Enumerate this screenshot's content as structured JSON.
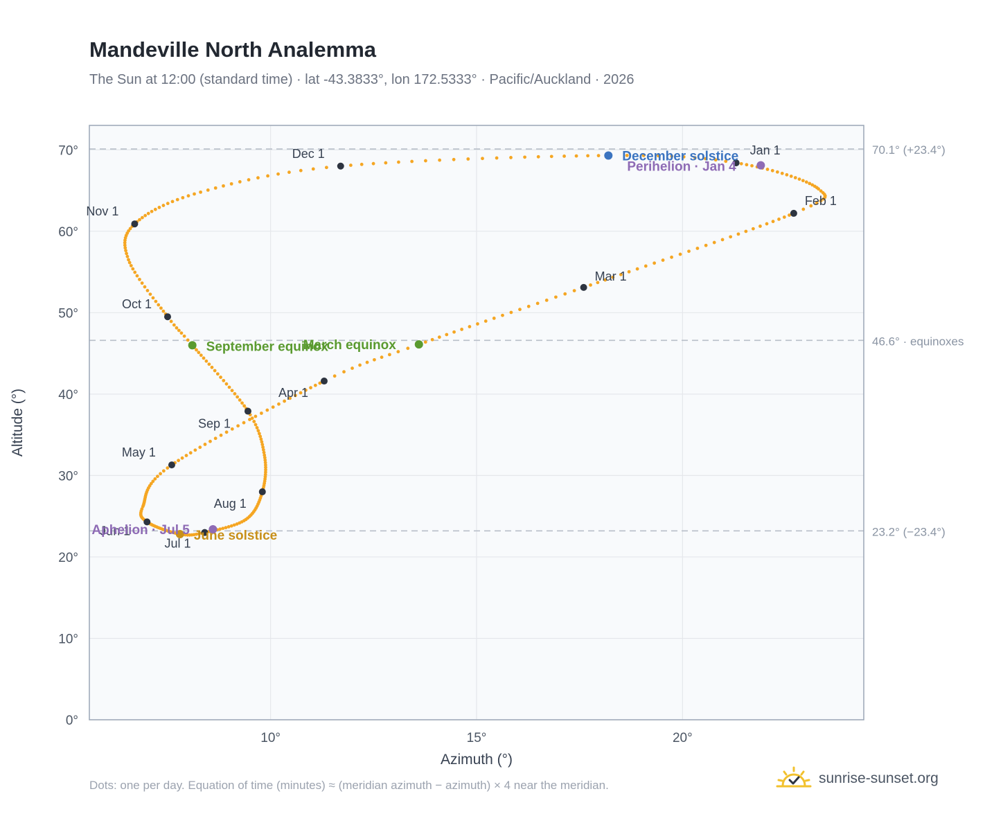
{
  "header": {
    "title": "Mandeville North Analemma",
    "subtitle": "The Sun at 12:00 (standard time) · lat -43.3833°, lon 172.5333° · Pacific/Auckland · 2026"
  },
  "footer": {
    "note": "Dots: one per day. Equation of time (minutes) ≈ (meridian azimuth − azimuth) × 4 near the meridian.",
    "brand": "sunrise-sunset.org",
    "brand_icon": "sun-logo-icon"
  },
  "colors": {
    "path": "#f5a623",
    "month_dot": "#2d3440",
    "equinox": "#5a9a2f",
    "december_solstice": "#3b74c0",
    "june_solstice": "#c8901a",
    "apsis": "#8e6bb5",
    "grid": "#e5e7eb",
    "frame": "#9aa5b5",
    "refline": "#b8bfc9",
    "plot_bg": "#f8fafc"
  },
  "chart_data": {
    "type": "scatter",
    "xlabel": "Azimuth (°)",
    "ylabel": "Altitude (°)",
    "xlim": [
      5.6,
      24.4
    ],
    "ylim": [
      0,
      73
    ],
    "xticks": [
      10,
      15,
      20
    ],
    "xtick_labels": [
      "10°",
      "15°",
      "20°"
    ],
    "yticks": [
      0,
      10,
      20,
      30,
      40,
      50,
      60,
      70
    ],
    "ytick_labels": [
      "0°",
      "10°",
      "20°",
      "30°",
      "40°",
      "50°",
      "60°",
      "70°"
    ],
    "grid": true,
    "reference_lines": [
      {
        "y": 70.1,
        "label": "70.1° (+23.4°)"
      },
      {
        "y": 46.6,
        "label": "46.6° · equinoxes"
      },
      {
        "y": 23.2,
        "label": "23.2° (−23.4°)"
      }
    ],
    "month_markers": [
      {
        "label": "Jan 1",
        "x": 21.3,
        "y": 68.4
      },
      {
        "label": "Feb 1",
        "x": 22.7,
        "y": 62.2
      },
      {
        "label": "Mar 1",
        "x": 17.6,
        "y": 53.1
      },
      {
        "label": "Apr 1",
        "x": 11.3,
        "y": 41.6
      },
      {
        "label": "May 1",
        "x": 7.6,
        "y": 31.3
      },
      {
        "label": "Jun 1",
        "x": 7.0,
        "y": 24.3
      },
      {
        "label": "Jul 1",
        "x": 8.4,
        "y": 23.0
      },
      {
        "label": "Aug 1",
        "x": 9.8,
        "y": 28.0
      },
      {
        "label": "Sep 1",
        "x": 9.45,
        "y": 37.9
      },
      {
        "label": "Oct 1",
        "x": 7.5,
        "y": 49.5
      },
      {
        "label": "Nov 1",
        "x": 6.7,
        "y": 60.9
      },
      {
        "label": "Dec 1",
        "x": 11.7,
        "y": 68.0
      }
    ],
    "events": [
      {
        "label": "December solstice",
        "x": 18.2,
        "y": 69.3,
        "kind": "december_solstice"
      },
      {
        "label": "Perihelion · Jan 4",
        "x": 21.9,
        "y": 68.1,
        "kind": "apsis"
      },
      {
        "label": "March equinox",
        "x": 13.6,
        "y": 46.1,
        "kind": "equinox"
      },
      {
        "label": "September equinox",
        "x": 8.1,
        "y": 46.0,
        "kind": "equinox"
      },
      {
        "label": "June solstice",
        "x": 7.8,
        "y": 22.8,
        "kind": "june_solstice"
      },
      {
        "label": "Aphelion · Jul 5",
        "x": 8.6,
        "y": 23.4,
        "kind": "apsis"
      }
    ]
  }
}
